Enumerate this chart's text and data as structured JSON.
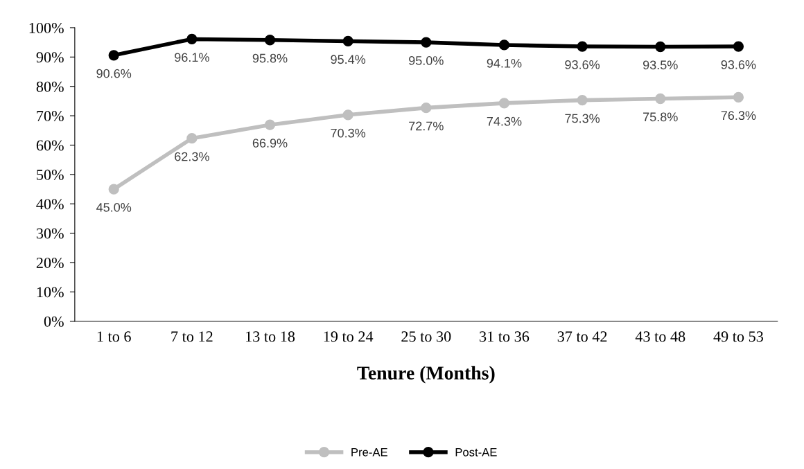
{
  "chart_data": {
    "type": "line",
    "xlabel": "Tenure (Months)",
    "categories": [
      "1 to 6",
      "7 to 12",
      "13 to 18",
      "19 to 24",
      "25 to 30",
      "31 to 36",
      "37 to 42",
      "43 to 48",
      "49 to 53"
    ],
    "series": [
      {
        "name": "Pre-AE",
        "color": "#bfbfbf",
        "values": [
          45.0,
          62.3,
          66.9,
          70.3,
          72.7,
          74.3,
          75.3,
          75.8,
          76.3
        ],
        "value_labels": [
          "45.0%",
          "62.3%",
          "66.9%",
          "70.3%",
          "72.7%",
          "74.3%",
          "75.3%",
          "75.8%",
          "76.3%"
        ]
      },
      {
        "name": "Post-AE",
        "color": "#000000",
        "values": [
          90.6,
          96.1,
          95.8,
          95.4,
          95.0,
          94.1,
          93.6,
          93.5,
          93.6
        ],
        "value_labels": [
          "90.6%",
          "96.1%",
          "95.8%",
          "95.4%",
          "95.0%",
          "94.1%",
          "93.6%",
          "93.5%",
          "93.6%"
        ]
      }
    ],
    "ylim": [
      0,
      100
    ],
    "yticks": [
      {
        "value": 0,
        "label": "0%"
      },
      {
        "value": 10,
        "label": "10%"
      },
      {
        "value": 20,
        "label": "20%"
      },
      {
        "value": 30,
        "label": "30%"
      },
      {
        "value": 40,
        "label": "40%"
      },
      {
        "value": 50,
        "label": "50%"
      },
      {
        "value": 60,
        "label": "60%"
      },
      {
        "value": 70,
        "label": "70%"
      },
      {
        "value": 80,
        "label": "80%"
      },
      {
        "value": 90,
        "label": "90%"
      },
      {
        "value": 100,
        "label": "100%"
      }
    ],
    "legend": "bottom",
    "grid": false,
    "marker": "circle",
    "line_style": "solid"
  }
}
